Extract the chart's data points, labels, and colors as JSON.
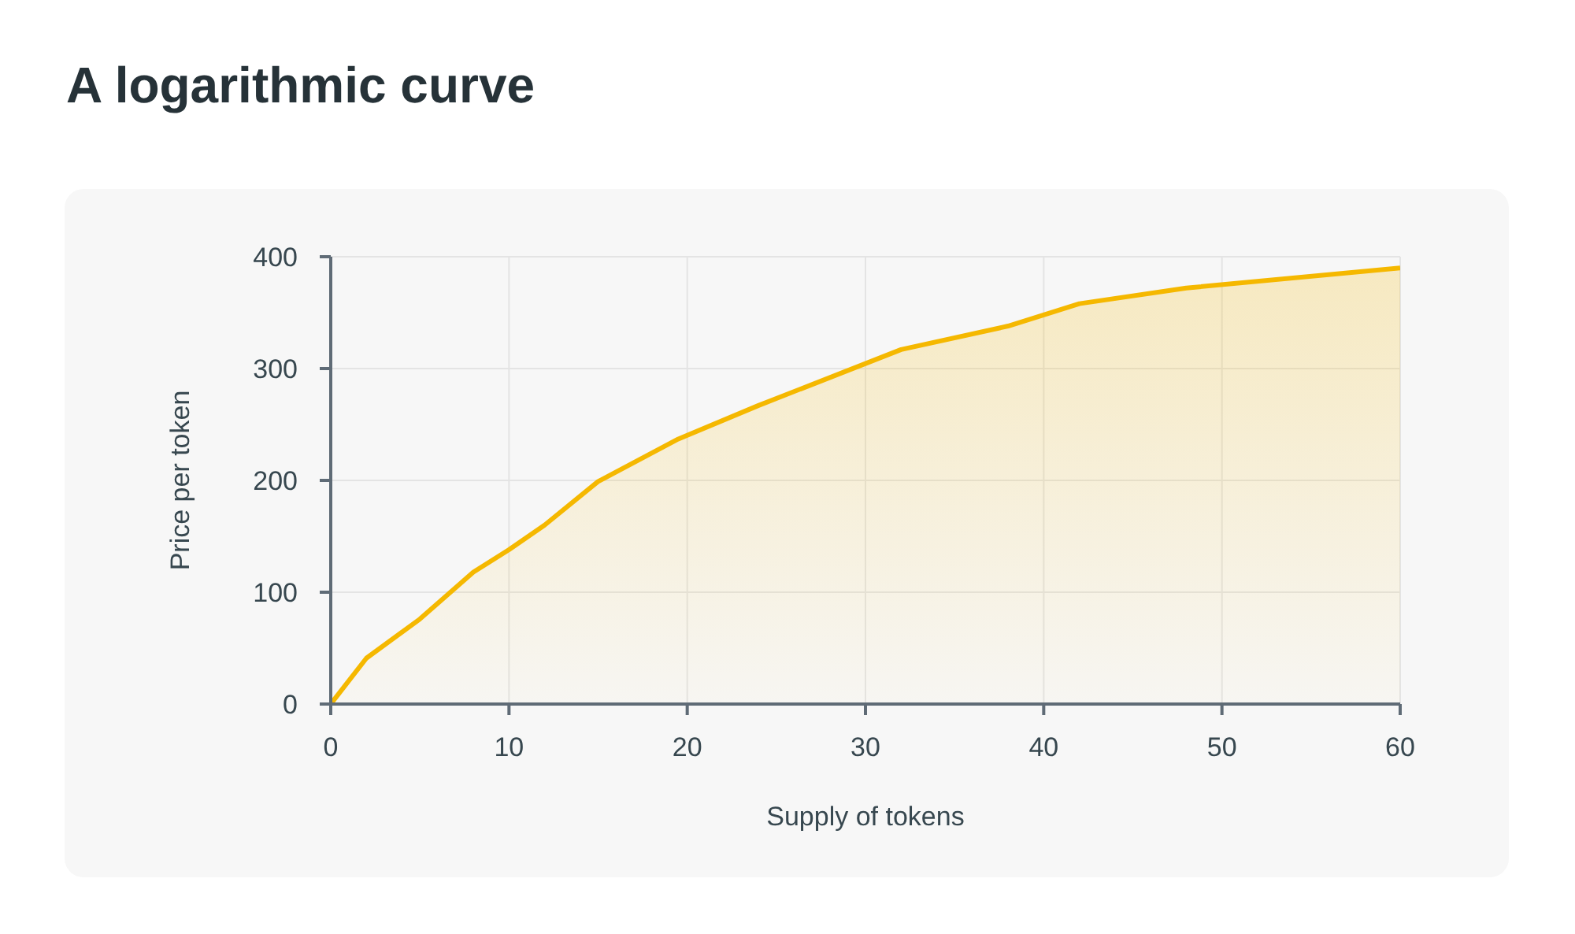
{
  "chart_data": {
    "type": "area",
    "title": "A logarithmic curve",
    "xlabel": "Supply of tokens",
    "ylabel": "Price per token",
    "x": [
      0,
      2,
      5,
      8,
      10,
      12,
      15,
      19.5,
      24,
      32,
      38,
      42,
      48,
      60
    ],
    "values": [
      0,
      41,
      76,
      118,
      138,
      160,
      199,
      237,
      267,
      317,
      338,
      358,
      372,
      390
    ],
    "color": "#f5b800",
    "xlim": [
      0,
      60
    ],
    "xticks": [
      0,
      10,
      20,
      30,
      40,
      50,
      60
    ],
    "ylim": [
      0,
      400
    ],
    "yticks": [
      0,
      100,
      200,
      300,
      400
    ],
    "grid": true
  }
}
